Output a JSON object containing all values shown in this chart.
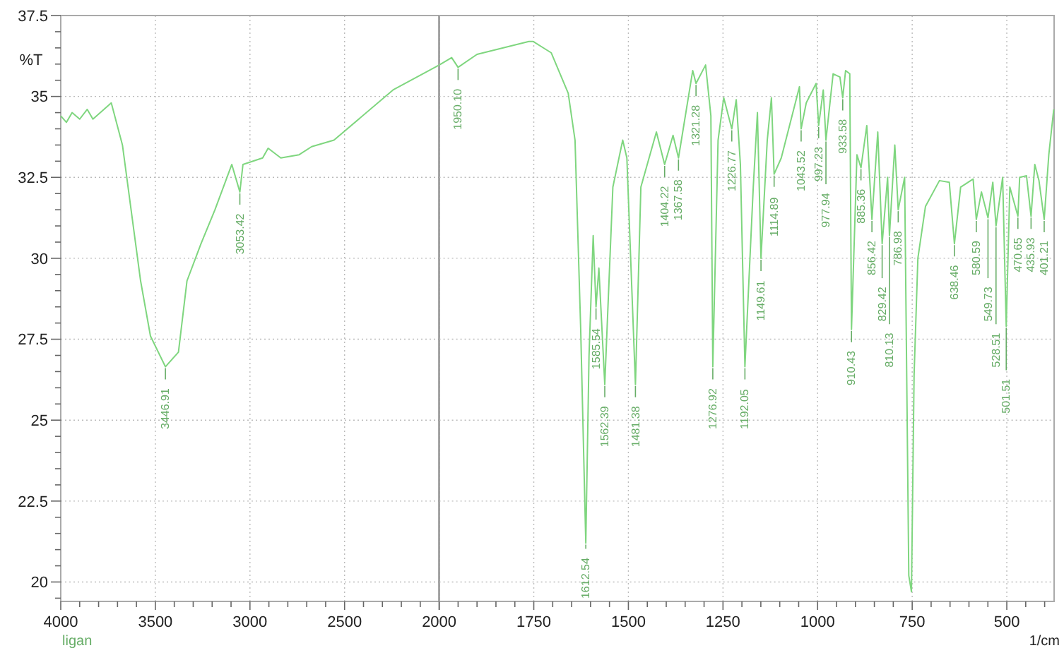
{
  "chart_data": [
    {
      "type": "line",
      "ylabel": "%T",
      "xlim": [
        4000,
        2000
      ],
      "ylim": [
        19.4,
        37.5
      ],
      "xticks": [
        4000,
        3500,
        3000,
        2500,
        {
          "value": 2000,
          "label": null
        }
      ],
      "yticks": [
        20,
        22.5,
        25,
        27.5,
        30,
        32.5,
        35,
        37.5
      ],
      "grid": true,
      "series": [
        {
          "name": "ligan",
          "color": "#7fd67f",
          "x": [
            4000,
            3970,
            3940,
            3900,
            3860,
            3830,
            3733,
            3674,
            3578,
            3526,
            3446.91,
            3378,
            3333,
            3259,
            3185,
            3096,
            3053.42,
            3037,
            2933,
            2904,
            2837,
            2740,
            2674,
            2556,
            2244,
            2000
          ],
          "values": [
            34.4,
            34.2,
            34.5,
            34.3,
            34.6,
            34.3,
            34.8,
            33.5,
            29.3,
            27.6,
            26.65,
            27.1,
            29.3,
            30.45,
            31.5,
            32.9,
            32.05,
            32.9,
            33.1,
            33.4,
            33.1,
            33.2,
            33.45,
            33.65,
            35.2,
            35.97
          ]
        }
      ],
      "annotations": [
        {
          "text": "3446.91",
          "x": 3446.91,
          "y": 26.65
        },
        {
          "text": "3053.42",
          "x": 3053.42,
          "y": 32.05
        }
      ]
    },
    {
      "type": "line",
      "xlabel": "1/cm",
      "xlim": [
        2000,
        375
      ],
      "ylim": [
        19.4,
        37.5
      ],
      "tick_labels": "x",
      "xticks": [
        2000,
        1750,
        1500,
        1250,
        1000,
        750,
        500
      ],
      "yticks": [
        20,
        22.5,
        25,
        27.5,
        30,
        32.5,
        35,
        37.5
      ],
      "grid": true,
      "series": [
        {
          "color": "#7fd67f",
          "x": [
            2000,
            1967,
            1950.1,
            1900,
            1763,
            1752,
            1704,
            1659,
            1641,
            1626,
            1612.54,
            1604,
            1593,
            1585.54,
            1578,
            1562.39,
            1541,
            1515,
            1504,
            1481.38,
            1467,
            1426,
            1404.22,
            1382,
            1367.58,
            1330,
            1321.28,
            1296,
            1282,
            1276.92,
            1263,
            1248,
            1226.77,
            1215,
            1204,
            1192.05,
            1170,
            1159,
            1149.61,
            1133,
            1122,
            1114.89,
            1096,
            1048,
            1043.52,
            1030,
            1004,
            997.23,
            985,
            977.94,
            959,
            941,
            933.58,
            926,
            915,
            910.43,
            896,
            885.36,
            870,
            856.42,
            841,
            829.42,
            815,
            810.13,
            796,
            786.98,
            770,
            759,
            752,
            745,
            735,
            715,
            678,
            652,
            638.46,
            622,
            589,
            580.59,
            567,
            549.73,
            537,
            528.51,
            511,
            501.51,
            492,
            470.65,
            466,
            448,
            435.93,
            426,
            415,
            401.21,
            389,
            376
          ],
          "values": [
            35.97,
            36.2,
            35.9,
            36.3,
            36.7,
            36.7,
            36.35,
            35.1,
            33.65,
            27.8,
            21.2,
            27.0,
            30.7,
            28.5,
            29.7,
            26.1,
            32.2,
            33.65,
            33.1,
            26.1,
            32.2,
            33.9,
            32.9,
            33.8,
            33.1,
            35.8,
            35.4,
            35.97,
            34.4,
            26.65,
            33.65,
            34.96,
            34.0,
            34.9,
            32.9,
            26.65,
            32.2,
            34.5,
            30.0,
            33.65,
            34.96,
            32.6,
            33.1,
            35.3,
            34.0,
            34.8,
            35.4,
            34.1,
            35.2,
            33.65,
            35.7,
            35.6,
            34.96,
            35.8,
            35.7,
            27.8,
            33.2,
            32.8,
            34.1,
            31.2,
            33.9,
            30.45,
            32.5,
            30.7,
            33.5,
            31.5,
            32.5,
            20.2,
            19.7,
            26.4,
            30.0,
            31.6,
            32.4,
            32.35,
            30.45,
            32.2,
            32.45,
            31.2,
            32.05,
            31.25,
            32.35,
            31.0,
            32.5,
            27.9,
            32.2,
            31.3,
            32.5,
            32.55,
            31.3,
            32.9,
            32.4,
            31.2,
            33.2,
            34.6
          ]
        }
      ],
      "annotations": [
        {
          "text": "1950.10",
          "x": 1950.1,
          "y": 35.9
        },
        {
          "text": "1612.54",
          "x": 1612.54,
          "y": 21.2
        },
        {
          "text": "1585.54",
          "x": 1585.54,
          "y": 28.5
        },
        {
          "text": "1562.39",
          "x": 1562.39,
          "y": 26.1
        },
        {
          "text": "1481.38",
          "x": 1481.38,
          "y": 26.1
        },
        {
          "text": "1404.22",
          "x": 1404.22,
          "y": 32.9
        },
        {
          "text": "1367.58",
          "x": 1367.58,
          "y": 33.1
        },
        {
          "text": "1321.28",
          "x": 1321.28,
          "y": 35.4
        },
        {
          "text": "1276.92",
          "x": 1276.92,
          "y": 26.65
        },
        {
          "text": "1226.77",
          "x": 1226.77,
          "y": 34.0
        },
        {
          "text": "1192.05",
          "x": 1192.05,
          "y": 26.65
        },
        {
          "text": "1149.61",
          "x": 1149.61,
          "y": 30.0
        },
        {
          "text": "1114.89",
          "x": 1114.89,
          "y": 32.6
        },
        {
          "text": "1043.52",
          "x": 1043.52,
          "y": 34.0
        },
        {
          "text": "997.23",
          "x": 997.23,
          "y": 34.1
        },
        {
          "text": "977.94",
          "x": 977.94,
          "y": 33.65
        },
        {
          "text": "933.58",
          "x": 933.58,
          "y": 34.96
        },
        {
          "text": "910.43",
          "x": 910.43,
          "y": 27.8
        },
        {
          "text": "885.36",
          "x": 885.36,
          "y": 32.8
        },
        {
          "text": "856.42",
          "x": 856.42,
          "y": 31.2
        },
        {
          "text": "829.42",
          "x": 829.42,
          "y": 30.45
        },
        {
          "text": "810.13",
          "x": 810.13,
          "y": 30.7
        },
        {
          "text": "786.98",
          "x": 786.98,
          "y": 31.5
        },
        {
          "text": "638.46",
          "x": 638.46,
          "y": 30.45
        },
        {
          "text": "580.59",
          "x": 580.59,
          "y": 31.2
        },
        {
          "text": "549.73",
          "x": 549.73,
          "y": 31.25
        },
        {
          "text": "528.51",
          "x": 528.51,
          "y": 31.0
        },
        {
          "text": "501.51",
          "x": 501.51,
          "y": 27.9
        },
        {
          "text": "470.65",
          "x": 470.65,
          "y": 31.3
        },
        {
          "text": "435.93",
          "x": 435.93,
          "y": 31.3
        },
        {
          "text": "401.21",
          "x": 401.21,
          "y": 31.2
        }
      ]
    }
  ]
}
